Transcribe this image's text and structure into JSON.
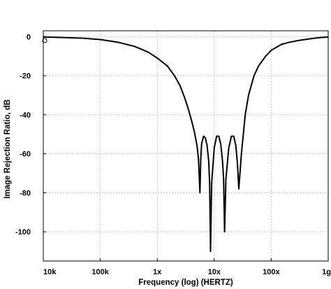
{
  "chart_data": {
    "type": "line",
    "xlabel": "Frequency (log) (HERTZ)",
    "ylabel": "Image Rejection Ratio, dB",
    "x_scale": "log",
    "xlim": [
      10000,
      1000000000
    ],
    "ylim": [
      -115,
      3
    ],
    "x_ticks": [
      {
        "value": 10000,
        "label": "10k"
      },
      {
        "value": 100000,
        "label": "100k"
      },
      {
        "value": 1000000,
        "label": "1x"
      },
      {
        "value": 10000000,
        "label": "10x"
      },
      {
        "value": 100000000,
        "label": "100x"
      },
      {
        "value": 1000000000,
        "label": "1g"
      }
    ],
    "y_ticks": [
      {
        "value": 0,
        "label": "0"
      },
      {
        "value": -20,
        "label": "-20"
      },
      {
        "value": -40,
        "label": "-40"
      },
      {
        "value": -60,
        "label": "-60"
      },
      {
        "value": -80,
        "label": "-80"
      },
      {
        "value": -100,
        "label": "-100"
      }
    ],
    "grid": true,
    "series": [
      {
        "color": "#000000",
        "x": [
          10000,
          20000,
          50000,
          100000,
          200000,
          400000,
          700000,
          1000000,
          1500000,
          2000000,
          2500000,
          3000000,
          3500000,
          4000000,
          4500000,
          5000000,
          5300000,
          5600000,
          5800000,
          6000000,
          6500000,
          7000000,
          7500000,
          8000000,
          8300000,
          8600000,
          9000000,
          10000000,
          11000000,
          12000000,
          13000000,
          14000000,
          14600000,
          15200000,
          16000000,
          18000000,
          20000000,
          22000000,
          24000000,
          25500000,
          27000000,
          30000000,
          35000000,
          40000000,
          50000000,
          60000000,
          80000000,
          100000000,
          150000000,
          200000000,
          300000000,
          500000000,
          700000000,
          1000000000
        ],
        "y": [
          -0.2,
          -0.4,
          -0.8,
          -1.5,
          -2.8,
          -5,
          -8,
          -11,
          -15,
          -20,
          -25,
          -31,
          -37,
          -43,
          -49,
          -56,
          -63,
          -80,
          -63,
          -55,
          -51,
          -52,
          -56,
          -64,
          -75,
          -110,
          -75,
          -57,
          -51,
          -51,
          -55,
          -64,
          -73,
          -100,
          -73,
          -57,
          -51,
          -51,
          -56,
          -65,
          -78,
          -60,
          -40,
          -30,
          -20,
          -15,
          -10,
          -7,
          -4,
          -3,
          -2,
          -1,
          -0.5,
          -0.2
        ]
      }
    ]
  }
}
